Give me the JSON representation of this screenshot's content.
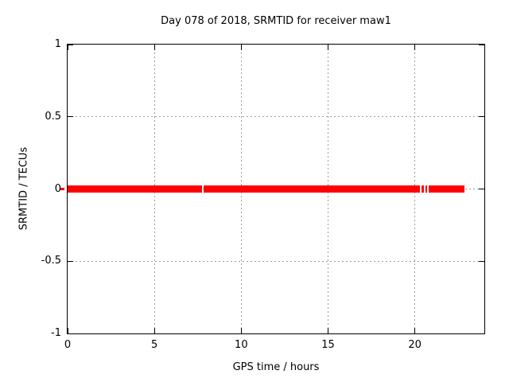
{
  "chart_data": {
    "type": "scatter",
    "title": "Day 078 of 2018, SRMTID for receiver maw1",
    "xlabel": "GPS time / hours",
    "ylabel": "SRMTID / TECUs",
    "xlim": [
      0,
      24
    ],
    "ylim": [
      -1,
      1
    ],
    "xticks": [
      0,
      5,
      10,
      15,
      20
    ],
    "xtick_labels": [
      "0",
      "5",
      "10",
      "15",
      "20"
    ],
    "yticks": [
      -1,
      -0.5,
      0,
      0.5,
      1
    ],
    "ytick_labels": [
      "-1",
      "-0.5",
      "0",
      "0.5",
      "1"
    ],
    "grid": "dotted",
    "legend": "none",
    "series": [
      {
        "name": "SRMTID",
        "color": "#ff0000",
        "marker": "filled-square",
        "y": 0,
        "segments": [
          [
            0,
            7.73
          ],
          [
            7.81,
            20.28
          ],
          [
            20.38,
            20.54
          ],
          [
            20.62,
            20.7
          ],
          [
            20.78,
            22.86
          ]
        ],
        "gaps_hours": [
          7.77,
          20.33,
          20.58,
          20.74
        ],
        "clipped_point_at_origin": true
      }
    ],
    "colors": {
      "background": "#ffffff",
      "border": "#000000",
      "grid": "#9e9e9e",
      "text": "#000000"
    }
  }
}
